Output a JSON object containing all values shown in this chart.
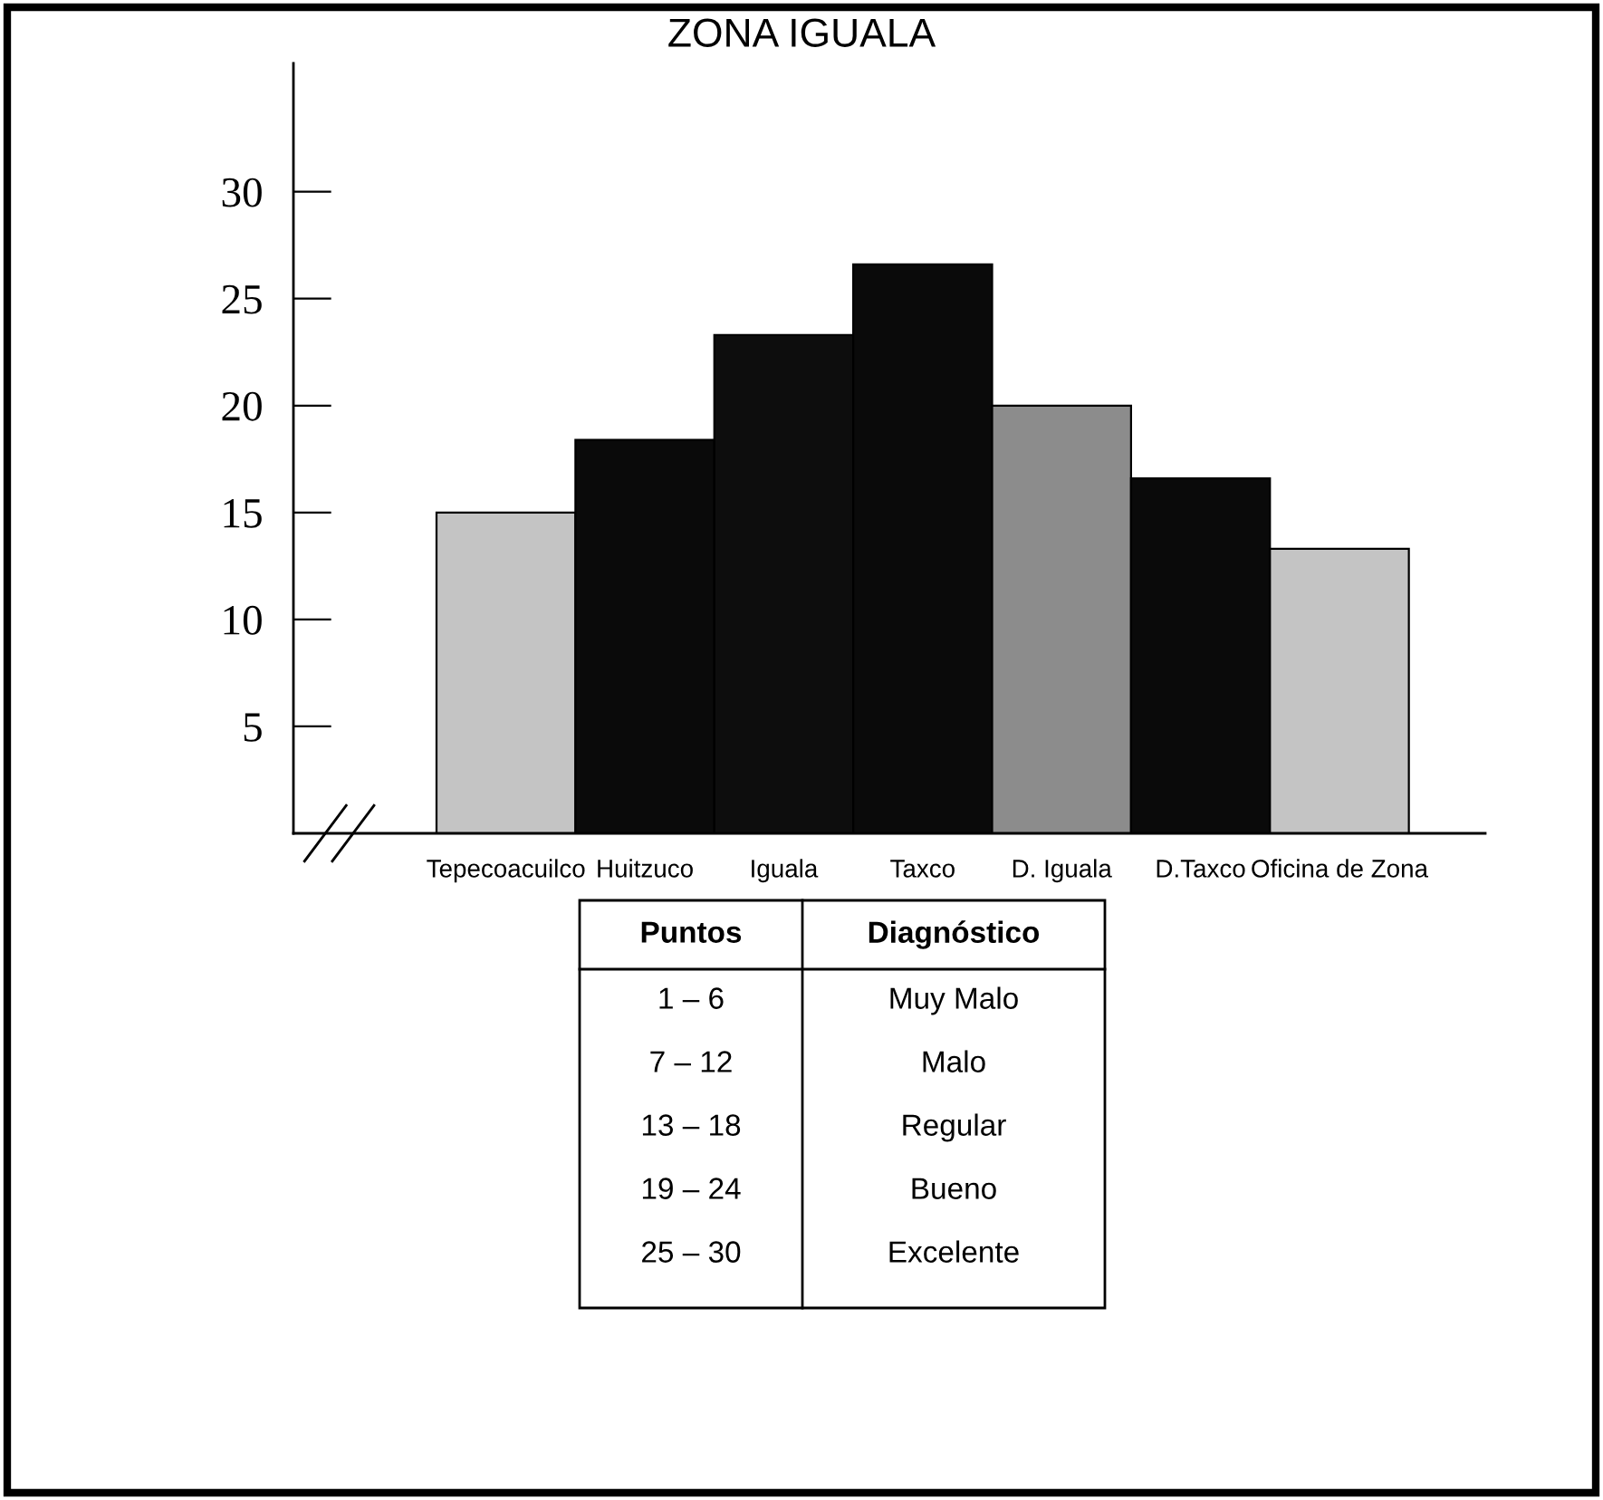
{
  "chart_data": {
    "type": "bar",
    "title": "ZONA IGUALA",
    "categories": [
      "Tepecoacuilco",
      "Huitzuco",
      "Iguala",
      "Taxco",
      "D. Iguala",
      "D.Taxco",
      "Oficina de Zona"
    ],
    "values": [
      15.0,
      18.4,
      23.3,
      26.6,
      20.0,
      16.6,
      13.3
    ],
    "colors": [
      "#c4c4c4",
      "#0a0a0a",
      "#0d0d0d",
      "#0a0a0a",
      "#8c8c8c",
      "#0a0a0a",
      "#c4c4c4"
    ],
    "ylim": [
      0,
      36
    ],
    "yticks": [
      5,
      10,
      15,
      20,
      25,
      30
    ],
    "grid": false,
    "legend": false,
    "annotations": [
      "Puntos",
      "Diagnóstico",
      "1 – 6",
      "Muy Malo",
      "7 – 12",
      "Malo",
      "13 – 18",
      "Regular",
      "19 – 24",
      "Bueno",
      "25 – 30",
      "Excelente"
    ]
  }
}
